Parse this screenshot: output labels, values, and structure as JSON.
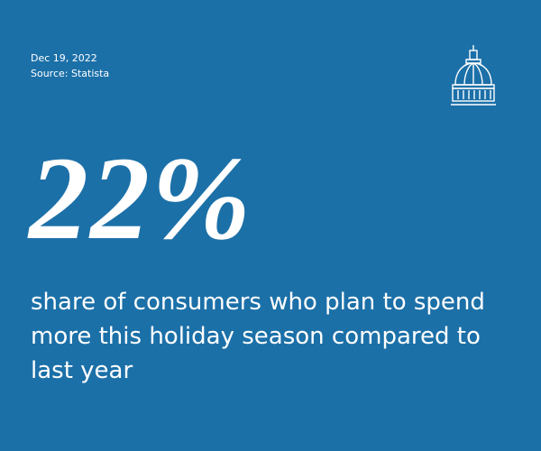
{
  "date": "Dec 19, 2022",
  "source": "Source: Statista",
  "stat": "22%",
  "description": "share of consumers who plan to spend more this holiday season compared to last year"
}
